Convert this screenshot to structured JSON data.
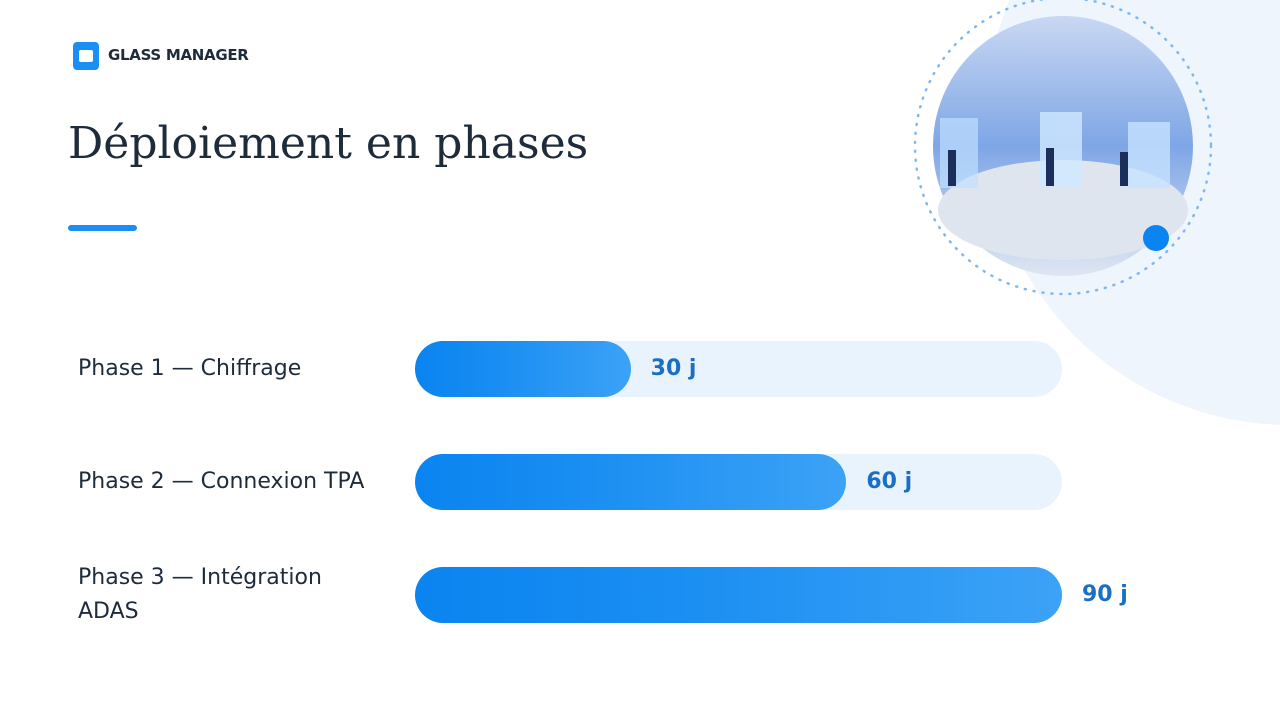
{
  "brand": "GLASS MANAGER",
  "chart_data": {
    "type": "bar",
    "orientation": "horizontal",
    "title": "Déploiement en phases",
    "categories": [
      "Phase 1 — Chiffrage",
      "Phase 2 — Connexion TPA",
      "Phase 3 — Intégration ADAS"
    ],
    "values": [
      30,
      60,
      90
    ],
    "value_labels": [
      "30 j",
      "60 j",
      "90 j"
    ],
    "color": "#0a84f0",
    "xlim": [
      0,
      90
    ]
  }
}
